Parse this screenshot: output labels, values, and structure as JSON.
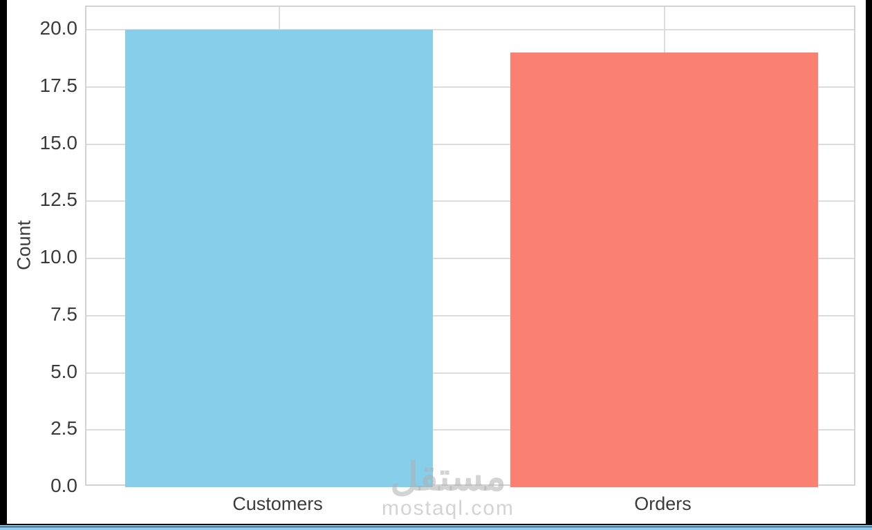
{
  "chart_data": {
    "type": "bar",
    "categories": [
      "Customers",
      "Orders"
    ],
    "values": [
      20,
      19
    ],
    "bar_colors": [
      "#87ceeb",
      "#fa8072"
    ],
    "title": "",
    "xlabel": "",
    "ylabel": "Count",
    "ylim": [
      0,
      21
    ],
    "yticks": [
      0.0,
      2.5,
      5.0,
      7.5,
      10.0,
      12.5,
      15.0,
      17.5,
      20.0
    ],
    "ytick_labels": [
      "0.0",
      "2.5",
      "5.0",
      "7.5",
      "10.0",
      "12.5",
      "15.0",
      "17.5",
      "20.0"
    ],
    "grid": true,
    "legend": "none",
    "grid_color": "#dcdcdc"
  },
  "watermark": {
    "logo_text": "مستقل",
    "domain_text": "mostaql.com"
  },
  "frame": {
    "side_border_color": "#000000",
    "bottom_bar_color": "#8ccdef"
  }
}
